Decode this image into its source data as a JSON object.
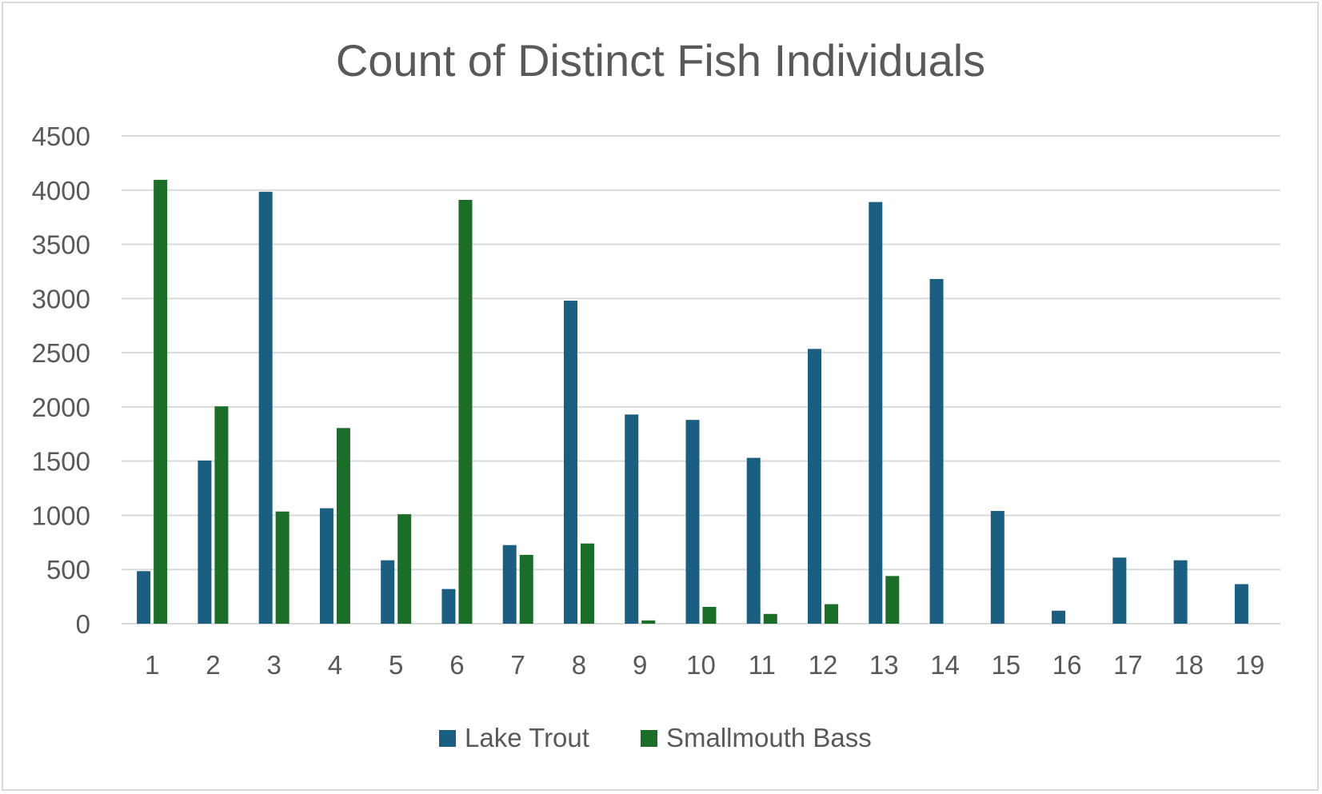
{
  "chart_data": {
    "type": "bar",
    "title": "Count of Distinct Fish Individuals",
    "xlabel": "",
    "ylabel": "",
    "categories": [
      "1",
      "2",
      "3",
      "4",
      "5",
      "6",
      "7",
      "8",
      "9",
      "10",
      "11",
      "12",
      "13",
      "14",
      "15",
      "16",
      "17",
      "18",
      "19"
    ],
    "series": [
      {
        "name": "Lake Trout",
        "color": "#1a5e82",
        "values": [
          485,
          1505,
          3985,
          1065,
          585,
          320,
          725,
          2980,
          1930,
          1880,
          1530,
          2535,
          3890,
          3180,
          1040,
          120,
          610,
          585,
          365
        ]
      },
      {
        "name": "Smallmouth Bass",
        "color": "#1b6e28",
        "values": [
          4095,
          2005,
          1035,
          1805,
          1010,
          3910,
          635,
          740,
          30,
          155,
          90,
          180,
          440,
          0,
          0,
          0,
          0,
          0,
          0
        ]
      }
    ],
    "ylim": [
      0,
      4500
    ],
    "yticks": [
      0,
      500,
      1000,
      1500,
      2000,
      2500,
      3000,
      3500,
      4000,
      4500
    ],
    "grid": true,
    "gridline_color": "#d9d9d9",
    "legend_position": "bottom"
  }
}
